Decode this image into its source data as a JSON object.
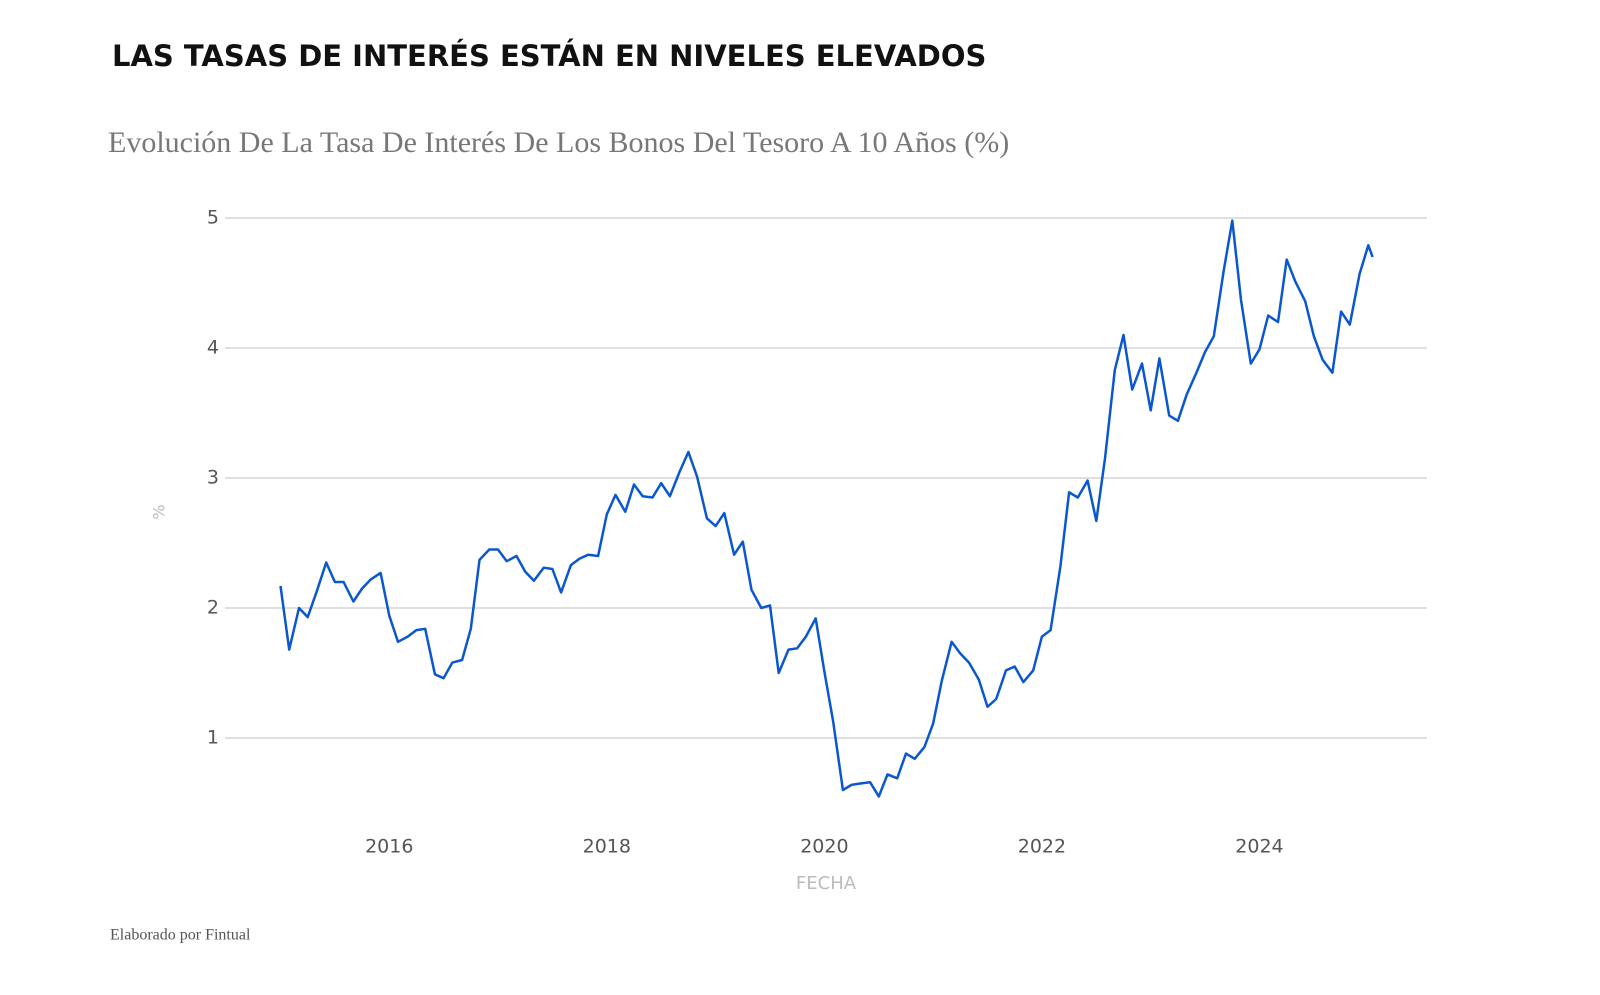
{
  "chart_data": {
    "type": "line",
    "title": "LAS TASAS DE INTERÉS ESTÁN EN NIVELES ELEVADOS",
    "subtitle": "Evolución De La Tasa De Interés De Los Bonos Del Tesoro A 10 Años (%)",
    "x_label": "FECHA",
    "y_label": "%",
    "color": "#0b57d0",
    "grid": true,
    "x": [
      2015,
      2015.08,
      2015.17,
      2015.25,
      2015.33,
      2015.42,
      2015.5,
      2015.58,
      2015.67,
      2015.75,
      2015.83,
      2015.92,
      2016,
      2016.08,
      2016.17,
      2016.25,
      2016.33,
      2016.42,
      2016.5,
      2016.58,
      2016.67,
      2016.75,
      2016.83,
      2016.92,
      2017,
      2017.08,
      2017.17,
      2017.25,
      2017.33,
      2017.42,
      2017.5,
      2017.58,
      2017.67,
      2017.75,
      2017.83,
      2017.92,
      2018,
      2018.08,
      2018.17,
      2018.25,
      2018.33,
      2018.42,
      2018.5,
      2018.58,
      2018.67,
      2018.75,
      2018.83,
      2018.92,
      2019,
      2019.08,
      2019.17,
      2019.25,
      2019.33,
      2019.42,
      2019.5,
      2019.58,
      2019.67,
      2019.75,
      2019.83,
      2019.92,
      2020,
      2020.08,
      2020.17,
      2020.25,
      2020.33,
      2020.42,
      2020.5,
      2020.58,
      2020.67,
      2020.75,
      2020.83,
      2020.92,
      2021,
      2021.08,
      2021.17,
      2021.25,
      2021.33,
      2021.42,
      2021.5,
      2021.58,
      2021.67,
      2021.75,
      2021.83,
      2021.92,
      2022,
      2022.08,
      2022.17,
      2022.25,
      2022.33,
      2022.42,
      2022.5,
      2022.58,
      2022.67,
      2022.75,
      2022.83,
      2022.92,
      2023,
      2023.08,
      2023.17,
      2023.25,
      2023.33,
      2023.42,
      2023.5,
      2023.58,
      2023.67,
      2023.75,
      2023.83,
      2023.92,
      2024,
      2024.08,
      2024.17,
      2024.25,
      2024.33,
      2024.42,
      2024.5,
      2024.58,
      2024.67,
      2024.75,
      2024.83,
      2024.92,
      2025,
      2025.04
    ],
    "values": [
      2.17,
      1.68,
      2.0,
      1.93,
      2.12,
      2.35,
      2.2,
      2.2,
      2.05,
      2.15,
      2.22,
      2.27,
      1.94,
      1.74,
      1.78,
      1.83,
      1.84,
      1.49,
      1.46,
      1.58,
      1.6,
      1.84,
      2.37,
      2.45,
      2.45,
      2.36,
      2.4,
      2.28,
      2.21,
      2.31,
      2.3,
      2.12,
      2.33,
      2.38,
      2.41,
      2.4,
      2.72,
      2.87,
      2.74,
      2.95,
      2.86,
      2.85,
      2.96,
      2.86,
      3.05,
      3.2,
      3.01,
      2.69,
      2.63,
      2.73,
      2.41,
      2.51,
      2.14,
      2.0,
      2.02,
      1.5,
      1.68,
      1.69,
      1.78,
      1.92,
      1.51,
      1.13,
      0.6,
      0.64,
      0.65,
      0.66,
      0.55,
      0.72,
      0.69,
      0.88,
      0.84,
      0.93,
      1.11,
      1.44,
      1.74,
      1.65,
      1.58,
      1.45,
      1.24,
      1.3,
      1.52,
      1.55,
      1.43,
      1.52,
      1.78,
      1.83,
      2.32,
      2.89,
      2.85,
      2.98,
      2.67,
      3.15,
      3.83,
      4.1,
      3.68,
      3.88,
      3.52,
      3.92,
      3.48,
      3.44,
      3.64,
      3.81,
      3.97,
      4.09,
      4.59,
      4.98,
      4.37,
      3.88,
      3.99,
      4.25,
      4.2,
      4.68,
      4.51,
      4.36,
      4.09,
      3.91,
      3.81,
      4.28,
      4.18,
      4.57,
      4.79,
      4.7
    ],
    "xlim": [
      2014.49,
      2025.54
    ],
    "xticks": [
      2016,
      2018,
      2020,
      2022,
      2024
    ],
    "ylim": [
      0.3,
      5.2
    ],
    "yticks": [
      1,
      2,
      3,
      4,
      5
    ]
  },
  "footer": "Elaborado por Fintual"
}
